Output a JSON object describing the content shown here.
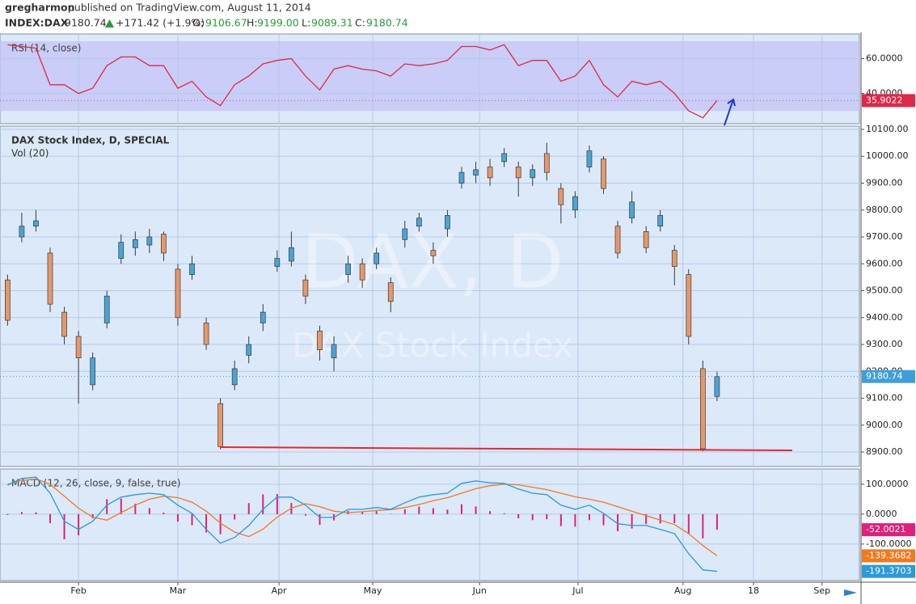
{
  "header": {
    "user": "gregharmon",
    "published": "published on TradingView.com, August 11, 2014",
    "symbol": "INDEX:DAX",
    "last": "9180.74",
    "change": "+171.42 (+1.9%)",
    "o_label": "O:",
    "o": "9106.67",
    "h_label": "H:",
    "h": "9199.00",
    "l_label": "L:",
    "l": "9089.31",
    "c_label": "C:",
    "c": "9180.74"
  },
  "chart_data": [
    {
      "type": "line",
      "title": "RSI (14, close)",
      "color": "#e0284a",
      "band": [
        30,
        70
      ],
      "band_color": "#c3c3f5",
      "x": [
        -15,
        -12,
        -9,
        -6,
        -3,
        0,
        3,
        6,
        9,
        12,
        15,
        18,
        21,
        24,
        27,
        30,
        33,
        36,
        39,
        42,
        45,
        48,
        51,
        54,
        57,
        60,
        63,
        66,
        69,
        72,
        75,
        78,
        81,
        84,
        87,
        90,
        93,
        96,
        99,
        102,
        105,
        108,
        111,
        114,
        117,
        120,
        123,
        126,
        129,
        132,
        135
      ],
      "values": [
        68,
        67,
        66,
        45,
        45,
        40,
        43,
        56,
        61,
        61,
        56,
        56,
        43,
        47,
        38,
        33,
        45,
        50,
        57,
        59,
        60,
        50,
        42,
        54,
        56,
        54,
        53,
        50,
        57,
        56,
        57,
        59,
        67,
        67,
        65,
        68,
        56,
        59,
        59,
        47,
        50,
        59,
        45,
        38,
        47,
        45,
        47,
        40,
        30,
        26,
        35.9022
      ],
      "xlim": [
        -16.6,
        165.1
      ],
      "ylim": [
        22.6,
        74.2
      ],
      "yticks": [
        {
          "value": 40,
          "label": "40.0000"
        },
        {
          "value": 60,
          "label": "60.0000"
        }
      ],
      "grid": true
    },
    {
      "type": "candlestick",
      "title": "DAX Stock Index, D, SPECIAL",
      "subtitle": "Vol (20)",
      "watermark": [
        "DAX, D",
        "DAX Stock Index"
      ],
      "up_color": "#4ba3d6",
      "down_color": "#e5986a",
      "last_color": "#3e9fd8",
      "x": [
        -15,
        -12,
        -9,
        -6,
        -3,
        0,
        3,
        6,
        9,
        12,
        15,
        18,
        21,
        24,
        27,
        30,
        33,
        36,
        39,
        42,
        45,
        48,
        51,
        54,
        57,
        60,
        63,
        66,
        69,
        72,
        75,
        78,
        81,
        84,
        87,
        90,
        93,
        96,
        99,
        102,
        105,
        108,
        111,
        114,
        117,
        120,
        123,
        126,
        129,
        132,
        135
      ],
      "open": [
        9540,
        9700,
        9740,
        9640,
        9420,
        9330,
        9150,
        9380,
        9620,
        9660,
        9670,
        9710,
        9580,
        9560,
        9380,
        9080,
        9150,
        9260,
        9380,
        9590,
        9610,
        9540,
        9350,
        9250,
        9560,
        9600,
        9600,
        9530,
        9690,
        9740,
        9650,
        9730,
        9900,
        9930,
        9960,
        9980,
        9960,
        9920,
        10010,
        9880,
        9800,
        9960,
        9990,
        9740,
        9770,
        9720,
        9740,
        9650,
        9560,
        9210,
        9106.67
      ],
      "high": [
        9560,
        9790,
        9800,
        9660,
        9440,
        9350,
        9270,
        9500,
        9710,
        9720,
        9730,
        9720,
        9600,
        9630,
        9400,
        9100,
        9240,
        9330,
        9450,
        9650,
        9720,
        9560,
        9370,
        9330,
        9630,
        9620,
        9660,
        9550,
        9760,
        9790,
        9680,
        9800,
        9960,
        9980,
        9990,
        10030,
        9980,
        9970,
        10050,
        9900,
        9870,
        10040,
        10000,
        9760,
        9870,
        9740,
        9800,
        9670,
        9580,
        9240,
        9199
      ],
      "low": [
        9370,
        9680,
        9720,
        9420,
        9300,
        9080,
        9130,
        9360,
        9600,
        9630,
        9640,
        9610,
        9370,
        9540,
        9280,
        8910,
        9130,
        9230,
        9350,
        9570,
        9590,
        9450,
        9240,
        9200,
        9530,
        9510,
        9580,
        9420,
        9660,
        9720,
        9600,
        9700,
        9880,
        9900,
        9890,
        9960,
        9850,
        9890,
        9910,
        9750,
        9770,
        9940,
        9860,
        9620,
        9750,
        9640,
        9720,
        9520,
        9300,
        8903,
        9089.31
      ],
      "close": [
        9390,
        9740,
        9760,
        9450,
        9330,
        9250,
        9250,
        9480,
        9680,
        9690,
        9700,
        9640,
        9400,
        9600,
        9300,
        8920,
        9210,
        9300,
        9420,
        9620,
        9660,
        9480,
        9280,
        9300,
        9600,
        9540,
        9640,
        9460,
        9730,
        9770,
        9630,
        9780,
        9940,
        9950,
        9920,
        10010,
        9920,
        9950,
        9940,
        9820,
        9850,
        10020,
        9880,
        9640,
        9830,
        9660,
        9780,
        9590,
        9330,
        8912,
        9180.74
      ],
      "xlim": [
        -16.6,
        165.1
      ],
      "ylim": [
        8846,
        10112
      ],
      "yticks": [
        {
          "value": 8900,
          "label": "8900.00"
        },
        {
          "value": 9000,
          "label": "9000.00"
        },
        {
          "value": 9100,
          "label": "9100.00"
        },
        {
          "value": 9200,
          "label": "9200.00"
        },
        {
          "value": 9300,
          "label": "9300.00"
        },
        {
          "value": 9400,
          "label": "9400.00"
        },
        {
          "value": 9500,
          "label": "9500.00"
        },
        {
          "value": 9600,
          "label": "9600.00"
        },
        {
          "value": 9700,
          "label": "9700.00"
        },
        {
          "value": 9800,
          "label": "9800.00"
        },
        {
          "value": 9900,
          "label": "9900.00"
        },
        {
          "value": 10000,
          "label": "10000.00"
        },
        {
          "value": 10100,
          "label": "10100.00"
        }
      ],
      "grid": true
    },
    {
      "type": "macd",
      "title": "MACD (12, 26, close, 9, false, true)",
      "x": [
        -15,
        -12,
        -9,
        -6,
        -3,
        0,
        3,
        6,
        9,
        12,
        15,
        18,
        21,
        24,
        27,
        30,
        33,
        36,
        39,
        42,
        45,
        48,
        51,
        54,
        57,
        60,
        63,
        66,
        69,
        72,
        75,
        78,
        81,
        84,
        87,
        90,
        93,
        96,
        99,
        102,
        105,
        108,
        111,
        114,
        117,
        120,
        123,
        126,
        129,
        132,
        135
      ],
      "series": [
        {
          "kind": "bar",
          "color": "#e0207a",
          "values": [
            -3,
            7,
            6,
            -30,
            -84,
            -71,
            -14,
            50,
            52,
            35,
            20,
            5,
            -25,
            -37,
            -61,
            -67,
            -18,
            37,
            66,
            67,
            37,
            -5,
            -36,
            -21,
            11,
            8,
            10,
            1,
            16,
            25,
            20,
            15,
            33,
            26,
            10,
            3,
            -14,
            -20,
            -17,
            -40,
            -42,
            -20,
            -37,
            -57,
            -48,
            -33,
            -31,
            -30,
            -67,
            -81,
            -52.0021
          ]
        },
        {
          "kind": "line",
          "color": "#f07a1e",
          "values": [
            100,
            112,
            118,
            100,
            60,
            20,
            -10,
            -20,
            5,
            30,
            50,
            60,
            55,
            40,
            10,
            -30,
            -60,
            -75,
            -50,
            -10,
            20,
            35,
            25,
            10,
            5,
            8,
            12,
            15,
            22,
            32,
            45,
            55,
            70,
            85,
            95,
            100,
            98,
            90,
            82,
            70,
            58,
            50,
            40,
            25,
            10,
            -5,
            -20,
            -35,
            -65,
            -105,
            -139.3682
          ]
        },
        {
          "kind": "line",
          "color": "#2b9ad8",
          "values": [
            97,
            119,
            124,
            70,
            -24,
            -51,
            -24,
            30,
            57,
            65,
            70,
            65,
            30,
            3,
            -51,
            -97,
            -78,
            -38,
            16,
            57,
            57,
            30,
            -11,
            -11,
            16,
            16,
            22,
            16,
            38,
            57,
            65,
            70,
            103,
            111,
            105,
            103,
            84,
            70,
            65,
            30,
            16,
            30,
            3,
            -32,
            -38,
            -38,
            -51,
            -65,
            -132,
            -186,
            -191.3703
          ]
        }
      ],
      "xlim": [
        -16.6,
        165.1
      ],
      "ylim": [
        -222,
        151
      ],
      "yticks": [
        {
          "value": 100,
          "label": "100.0000"
        },
        {
          "value": 0,
          "label": "0.0000"
        },
        {
          "value": -100,
          "label": "-100.0000"
        }
      ],
      "xticks": [
        {
          "value": 0,
          "label": "Feb"
        },
        {
          "value": 21,
          "label": "Mar"
        },
        {
          "value": 42.4,
          "label": "Apr"
        },
        {
          "value": 62.2,
          "label": "May"
        },
        {
          "value": 84.8,
          "label": "Jun"
        },
        {
          "value": 105.6,
          "label": "Jul"
        },
        {
          "value": 127.8,
          "label": "Aug"
        },
        {
          "value": 142.7,
          "label": "18"
        },
        {
          "value": 157.2,
          "label": "Sep"
        }
      ],
      "grid": true
    }
  ]
}
